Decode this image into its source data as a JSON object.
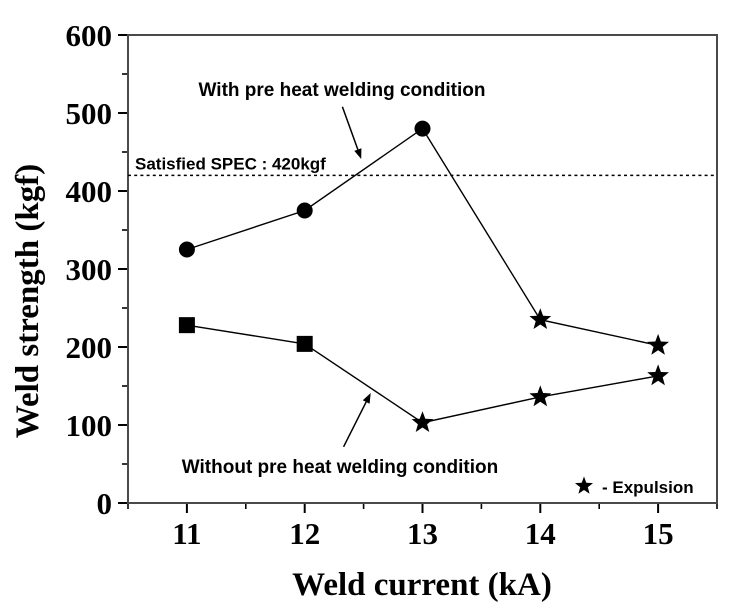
{
  "chart_data": {
    "type": "line",
    "title": "",
    "xlabel": "Weld current (kA)",
    "ylabel": "Weld strength (kgf)",
    "x": [
      11,
      12,
      13,
      14,
      15
    ],
    "xlim": [
      10.5,
      15.5
    ],
    "ylim": [
      0,
      600
    ],
    "xticks": [
      11,
      12,
      13,
      14,
      15
    ],
    "yticks": [
      0,
      100,
      200,
      300,
      400,
      500,
      600
    ],
    "x_minor_ticks": [
      10.5,
      11.5,
      12.5,
      13.5,
      14.5,
      15.5
    ],
    "y_minor_ticks": [
      50,
      150,
      250,
      350,
      450,
      550
    ],
    "grid": false,
    "legend_position": "inside-bottom-right",
    "series": [
      {
        "name": "With pre heat welding condition",
        "marker": "circle",
        "values": [
          325,
          375,
          480,
          235,
          202
        ],
        "expulsion_at": [
          14,
          15
        ]
      },
      {
        "name": "Without pre heat welding condition",
        "marker": "square",
        "values": [
          228,
          204,
          103,
          136,
          163
        ],
        "expulsion_at": [
          13,
          14,
          15
        ]
      }
    ],
    "spec_line": {
      "value": 420,
      "label": "Satisfied SPEC : 420kgf",
      "style": "dotted"
    },
    "annotations": [
      {
        "text": "With pre heat welding condition",
        "arrow_from": {
          "x": 12.32,
          "y": 508
        },
        "arrow_to": {
          "x": 12.48,
          "y": 441
        }
      },
      {
        "text": "Without pre heat welding condition",
        "arrow_from": {
          "x": 12.33,
          "y": 72
        },
        "arrow_to": {
          "x": 12.56,
          "y": 141
        }
      }
    ],
    "legend": {
      "symbol": "star",
      "label": "- Expulsion"
    },
    "colors": {
      "data": "#000000",
      "frame": "#4a4a4a",
      "background": "#ffffff",
      "text": "#000000"
    }
  }
}
